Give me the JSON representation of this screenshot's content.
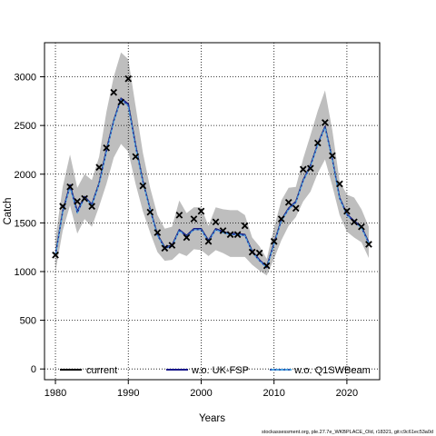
{
  "chart_data": {
    "type": "line",
    "xlabel": "Years",
    "ylabel": "Catch",
    "xlim": [
      1978.5,
      2024.5
    ],
    "ylim": [
      -110,
      3350
    ],
    "x_ticks": [
      1980,
      1990,
      2000,
      2010,
      2020
    ],
    "y_ticks": [
      0,
      500,
      1000,
      1500,
      2000,
      2500,
      3000
    ],
    "grid": true,
    "legend_position": "bottom",
    "colors": {
      "band": "#bebebe",
      "current": "#000000",
      "wo_uk_fsp": "#1a1a8c",
      "wo_q1swbeam": "#4aa3df",
      "observed": "#000000"
    },
    "years": [
      1980,
      1981,
      1982,
      1983,
      1984,
      1985,
      1986,
      1987,
      1988,
      1989,
      1990,
      1991,
      1992,
      1993,
      1994,
      1995,
      1996,
      1997,
      1998,
      1999,
      2000,
      2001,
      2002,
      2003,
      2004,
      2005,
      2006,
      2007,
      2008,
      2009,
      2010,
      2011,
      2012,
      2013,
      2014,
      2015,
      2016,
      2017,
      2018,
      2019,
      2020,
      2021,
      2022,
      2023
    ],
    "band_low": [
      1000,
      1420,
      1680,
      1390,
      1540,
      1460,
      1670,
      1900,
      2170,
      2310,
      2230,
      1900,
      1620,
      1400,
      1200,
      1110,
      1120,
      1190,
      1160,
      1230,
      1220,
      1160,
      1220,
      1190,
      1150,
      1150,
      1150,
      1070,
      1010,
      960,
      1130,
      1320,
      1470,
      1560,
      1720,
      1820,
      2010,
      2150,
      1880,
      1580,
      1410,
      1350,
      1300,
      1140
    ],
    "band_high": [
      1340,
      1870,
      2200,
      1860,
      2000,
      1940,
      2180,
      2640,
      3000,
      3250,
      3180,
      2700,
      2220,
      1860,
      1580,
      1440,
      1460,
      1730,
      1600,
      1660,
      1660,
      1470,
      1660,
      1640,
      1630,
      1630,
      1580,
      1350,
      1260,
      1130,
      1450,
      1730,
      1860,
      1870,
      2160,
      2400,
      2650,
      2860,
      2450,
      1930,
      1790,
      1760,
      1640,
      1460
    ],
    "series": [
      {
        "name": "current",
        "values": [
          1170,
          1620,
          1890,
          1620,
          1770,
          1690,
          1910,
          2250,
          2550,
          2780,
          2720,
          2300,
          1930,
          1640,
          1380,
          1250,
          1270,
          1430,
          1370,
          1440,
          1440,
          1320,
          1440,
          1410,
          1390,
          1390,
          1380,
          1210,
          1120,
          1050,
          1290,
          1530,
          1650,
          1720,
          1940,
          2090,
          2310,
          2490,
          2160,
          1760,
          1590,
          1520,
          1460,
          1300
        ]
      },
      {
        "name": "w.o. UK-FSP",
        "values": [
          1170,
          1620,
          1890,
          1620,
          1770,
          1690,
          1910,
          2250,
          2550,
          2780,
          2720,
          2300,
          1930,
          1640,
          1380,
          1250,
          1270,
          1430,
          1370,
          1440,
          1440,
          1320,
          1440,
          1410,
          1390,
          1390,
          1380,
          1210,
          1120,
          1050,
          1290,
          1530,
          1650,
          1720,
          1940,
          2090,
          2310,
          2490,
          2160,
          1760,
          1590,
          1520,
          1460,
          1300
        ]
      },
      {
        "name": "w.o. Q1SWBeam",
        "values": [
          1160,
          1610,
          1870,
          1600,
          1760,
          1680,
          1900,
          2230,
          2540,
          2770,
          2700,
          2280,
          1920,
          1630,
          1370,
          1240,
          1260,
          1420,
          1360,
          1430,
          1430,
          1310,
          1430,
          1400,
          1380,
          1380,
          1370,
          1200,
          1110,
          1040,
          1280,
          1520,
          1640,
          1710,
          1930,
          2080,
          2300,
          2480,
          2150,
          1750,
          1580,
          1510,
          1450,
          1290
        ]
      }
    ],
    "observed": [
      1170,
      1670,
      1870,
      1720,
      1750,
      1670,
      2070,
      2270,
      2840,
      2740,
      2980,
      2180,
      1880,
      1610,
      1400,
      1240,
      1270,
      1580,
      1350,
      1540,
      1620,
      1310,
      1510,
      1420,
      1380,
      1380,
      1470,
      1200,
      1190,
      1060,
      1310,
      1540,
      1710,
      1650,
      2050,
      2060,
      2320,
      2530,
      2190,
      1900,
      1620,
      1510,
      1460,
      1280
    ]
  },
  "legend": {
    "items": [
      {
        "label": "current"
      },
      {
        "label": "w.o. UK-FSP"
      },
      {
        "label": "w.o. Q1SWBeam"
      }
    ]
  },
  "footer": {
    "text": "stockassessment.org, ple.27.7e_WKBPLACE_Old, r18321, git:c9c61ec53a0d"
  }
}
